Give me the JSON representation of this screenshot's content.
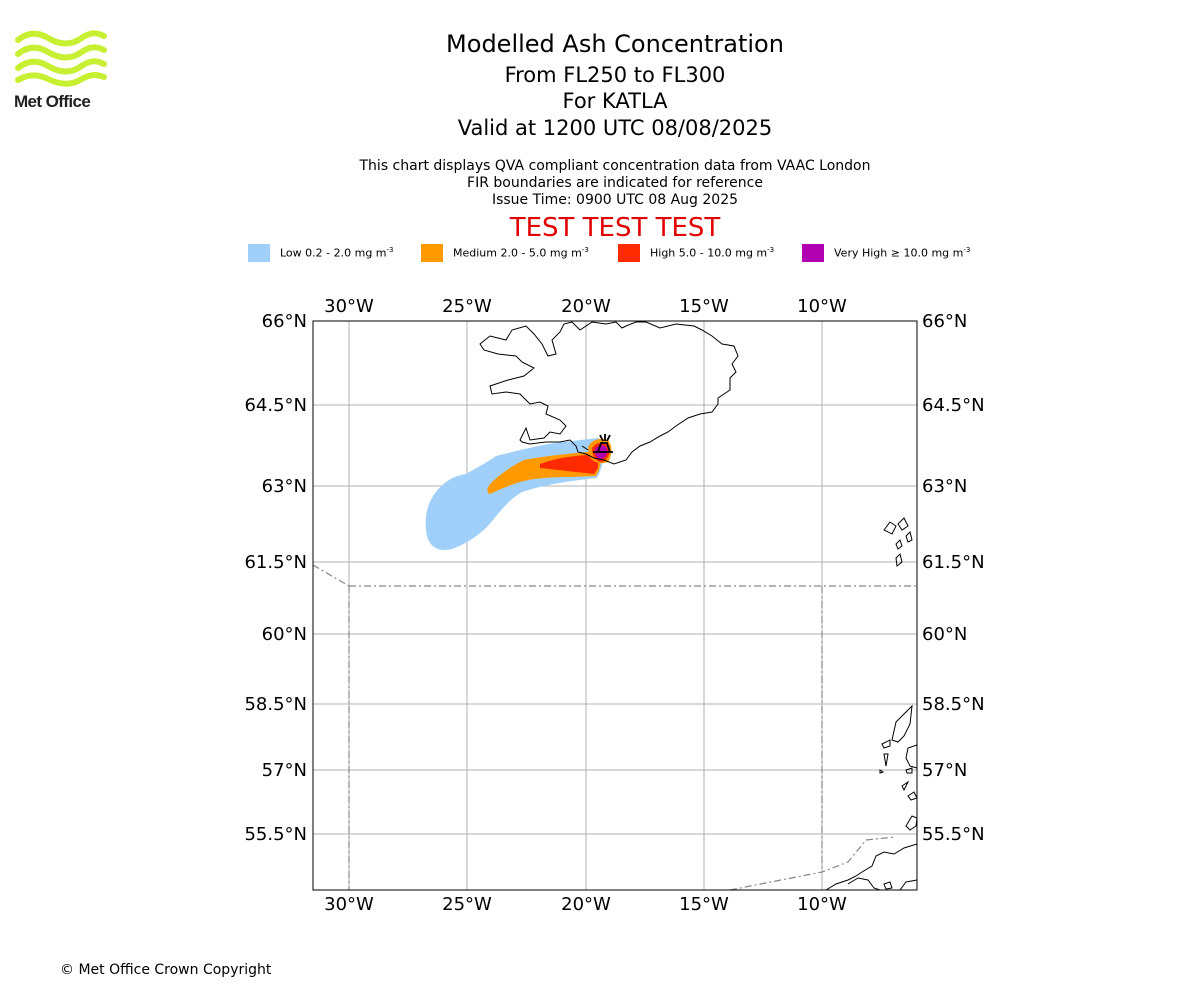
{
  "header": {
    "logo_text": "Met Office",
    "title": "Modelled Ash Concentration",
    "subtitle_levels": "From FL250 to FL300",
    "subtitle_volcano": "For KATLA",
    "subtitle_valid": "Valid at 1200 UTC 08/08/2025",
    "info_line1": "This chart displays QVA compliant concentration data from VAAC London",
    "info_line2": "FIR boundaries are indicated for reference",
    "info_line3": "Issue Time: 0900 UTC 08 Aug 2025",
    "test_banner": "TEST TEST TEST"
  },
  "legend": [
    {
      "label": "Low 0.2 - 2.0 mg m",
      "color": "#a0d0fa"
    },
    {
      "label": "Medium 2.0 - 5.0 mg m",
      "color": "#ff9900"
    },
    {
      "label": "High 5.0 - 10.0 mg m",
      "color": "#ff2a00"
    },
    {
      "label": "Very High ≥ 10.0 mg m",
      "color": "#b000b0"
    }
  ],
  "legend_unit_exponent": "-3",
  "map": {
    "lon_ticks": [
      "30°W",
      "25°W",
      "20°W",
      "15°W",
      "10°W"
    ],
    "lat_ticks": [
      "66°N",
      "64.5°N",
      "63°N",
      "61.5°N",
      "60°N",
      "58.5°N",
      "57°N",
      "55.5°N"
    ],
    "colors": {
      "low": "#a0d0fa",
      "medium": "#ff9900",
      "high": "#ff2a00",
      "very_high": "#b000b0",
      "coast": "#000000",
      "grid": "#b0b0b0",
      "fir": "#888888"
    }
  },
  "footer": {
    "copyright": "© Met Office Crown Copyright"
  }
}
